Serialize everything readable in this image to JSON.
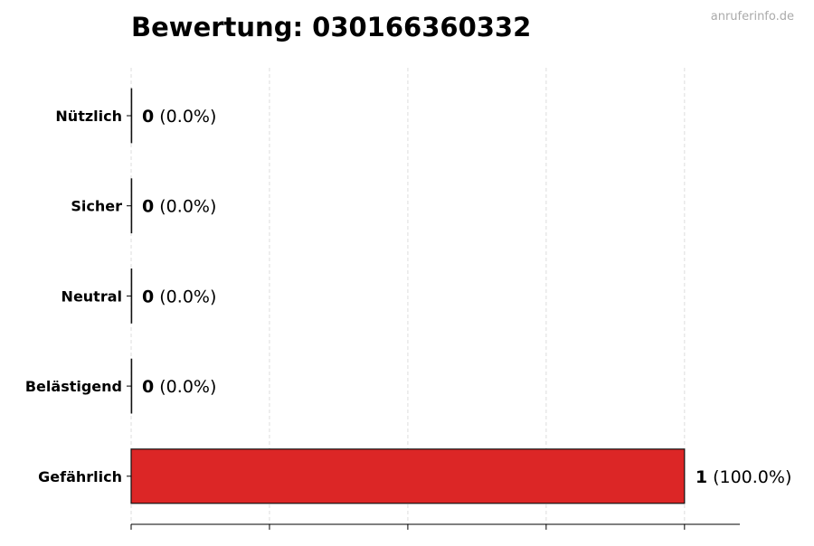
{
  "watermark": "anruferinfo.de",
  "chart_data": {
    "type": "bar",
    "orientation": "horizontal",
    "title": "Bewertung: 030166360332",
    "categories": [
      "Nützlich",
      "Sicher",
      "Neutral",
      "Belästigend",
      "Gefährlich"
    ],
    "values": [
      0,
      0,
      0,
      0,
      1
    ],
    "value_labels": [
      "0",
      "0",
      "0",
      "0",
      "1"
    ],
    "percent_labels": [
      "(0.0%)",
      "(0.0%)",
      "(0.0%)",
      "(0.0%)",
      "(100.0%)"
    ],
    "xlim": [
      0,
      1.1
    ],
    "xticks": [
      0,
      0.25,
      0.5,
      0.75,
      1
    ],
    "grid": "x-dashed",
    "bar_color": "#dc2626",
    "xlabel": "",
    "ylabel": ""
  }
}
